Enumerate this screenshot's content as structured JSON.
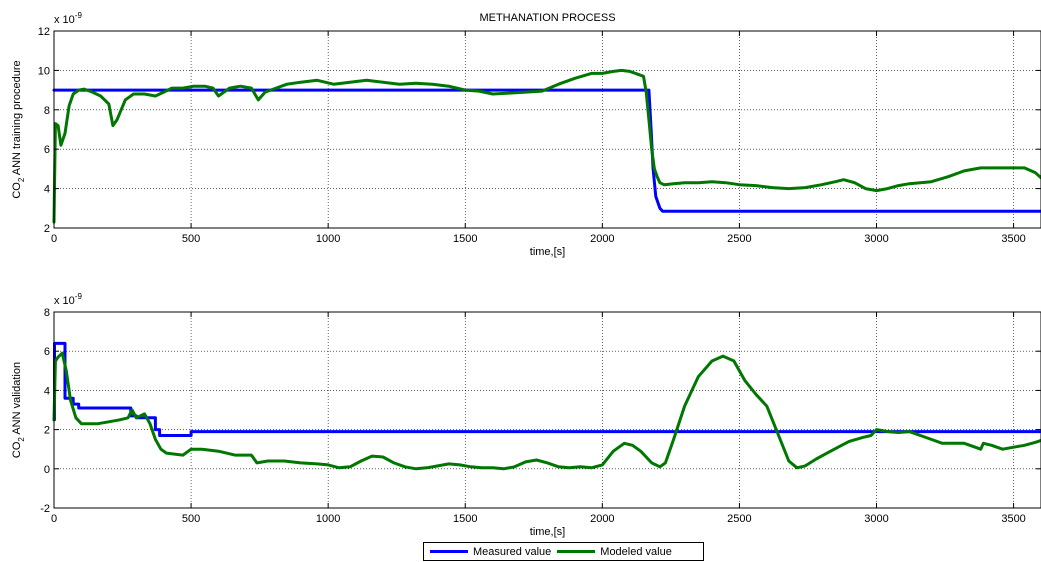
{
  "chart_data": [
    {
      "type": "line",
      "title": "METHANATION PROCESS",
      "xlabel": "time,[s]",
      "ylabel": "CO2 ANN training procedure",
      "ylabel_main": "CO",
      "ylabel_sub": "2",
      "ylabel_rest": " ANN training procedure",
      "exponent_label": "x 10",
      "exponent_power": "-9",
      "xlim": [
        0,
        3600
      ],
      "ylim": [
        2,
        12
      ],
      "grid": true,
      "xticks": [
        0,
        500,
        1000,
        1500,
        2000,
        2500,
        3000,
        3500
      ],
      "yticks": [
        2,
        4,
        6,
        8,
        10,
        12
      ],
      "series": [
        {
          "name": "Measured value",
          "color": "#0000ff",
          "x": [
            0,
            2,
            2,
            2170,
            2178,
            2185,
            2195,
            2210,
            2220,
            3600
          ],
          "y": [
            9.0,
            9.0,
            9.0,
            9.0,
            7.0,
            5.0,
            3.6,
            3.0,
            2.85,
            2.85
          ]
        },
        {
          "name": "Modeled value",
          "color": "#007700",
          "x": [
            0,
            5,
            15,
            25,
            40,
            55,
            70,
            90,
            110,
            140,
            170,
            200,
            215,
            230,
            260,
            290,
            330,
            370,
            400,
            430,
            470,
            510,
            550,
            580,
            600,
            640,
            680,
            720,
            745,
            770,
            810,
            850,
            900,
            960,
            1020,
            1080,
            1140,
            1200,
            1260,
            1320,
            1380,
            1440,
            1500,
            1550,
            1600,
            1660,
            1720,
            1780,
            1840,
            1900,
            1960,
            2000,
            2040,
            2070,
            2100,
            2130,
            2150,
            2160,
            2170,
            2180,
            2190,
            2200,
            2210,
            2225,
            2260,
            2300,
            2350,
            2400,
            2450,
            2500,
            2560,
            2620,
            2680,
            2740,
            2800,
            2850,
            2880,
            2920,
            2960,
            3000,
            3040,
            3080,
            3120,
            3160,
            3200,
            3260,
            3320,
            3380,
            3440,
            3500,
            3540,
            3580,
            3600
          ],
          "y": [
            2.3,
            7.3,
            7.2,
            6.2,
            6.8,
            8.2,
            8.8,
            9.0,
            9.05,
            8.9,
            8.7,
            8.3,
            7.2,
            7.5,
            8.5,
            8.8,
            8.8,
            8.7,
            8.9,
            9.1,
            9.1,
            9.2,
            9.2,
            9.1,
            8.7,
            9.1,
            9.2,
            9.1,
            8.5,
            8.9,
            9.1,
            9.3,
            9.4,
            9.5,
            9.3,
            9.4,
            9.5,
            9.4,
            9.3,
            9.35,
            9.3,
            9.2,
            9.0,
            8.95,
            8.8,
            8.85,
            8.9,
            8.95,
            9.3,
            9.6,
            9.85,
            9.85,
            9.95,
            10.0,
            9.95,
            9.8,
            9.7,
            8.9,
            7.5,
            6.0,
            5.0,
            4.6,
            4.3,
            4.2,
            4.25,
            4.3,
            4.3,
            4.35,
            4.3,
            4.2,
            4.15,
            4.05,
            4.0,
            4.05,
            4.2,
            4.35,
            4.45,
            4.3,
            4.0,
            3.9,
            4.0,
            4.15,
            4.25,
            4.3,
            4.35,
            4.6,
            4.9,
            5.05,
            5.05,
            5.05,
            5.05,
            4.8,
            4.55
          ]
        }
      ]
    },
    {
      "type": "line",
      "title": "",
      "xlabel": "time,[s]",
      "ylabel": "CO2 ANN validation",
      "ylabel_main": "CO",
      "ylabel_sub": "2",
      "ylabel_rest": " ANN validation",
      "exponent_label": "x 10",
      "exponent_power": "-9",
      "xlim": [
        0,
        3600
      ],
      "ylim": [
        -2,
        8
      ],
      "grid": true,
      "xticks": [
        0,
        500,
        1000,
        1500,
        2000,
        2500,
        3000,
        3500
      ],
      "yticks": [
        -2,
        0,
        2,
        4,
        6,
        8
      ],
      "series": [
        {
          "name": "Measured value",
          "color": "#0000ff",
          "x": [
            0,
            2,
            2,
            40,
            40,
            70,
            70,
            90,
            90,
            280,
            280,
            300,
            300,
            370,
            370,
            385,
            385,
            500,
            500,
            3600
          ],
          "y": [
            2.5,
            2.5,
            6.4,
            6.4,
            3.6,
            3.6,
            3.3,
            3.3,
            3.1,
            3.1,
            2.7,
            2.7,
            2.6,
            2.6,
            2.0,
            2.0,
            1.7,
            1.7,
            1.9,
            1.9
          ]
        },
        {
          "name": "Modeled value",
          "color": "#007700",
          "x": [
            0,
            5,
            15,
            30,
            45,
            60,
            80,
            100,
            130,
            160,
            200,
            240,
            270,
            285,
            300,
            330,
            350,
            370,
            390,
            410,
            440,
            470,
            500,
            540,
            600,
            660,
            720,
            740,
            780,
            840,
            900,
            960,
            1000,
            1040,
            1080,
            1120,
            1160,
            1200,
            1240,
            1280,
            1320,
            1360,
            1400,
            1440,
            1480,
            1520,
            1560,
            1600,
            1640,
            1680,
            1720,
            1760,
            1800,
            1840,
            1880,
            1920,
            1960,
            2000,
            2040,
            2080,
            2110,
            2140,
            2180,
            2210,
            2230,
            2260,
            2300,
            2350,
            2400,
            2440,
            2480,
            2520,
            2560,
            2600,
            2640,
            2680,
            2710,
            2740,
            2780,
            2820,
            2860,
            2900,
            2950,
            2980,
            3000,
            3040,
            3080,
            3120,
            3160,
            3200,
            3240,
            3280,
            3320,
            3360,
            3380,
            3390,
            3420,
            3460,
            3500,
            3540,
            3580,
            3600
          ],
          "y": [
            2.5,
            5.5,
            5.7,
            5.9,
            5.0,
            3.5,
            2.6,
            2.3,
            2.3,
            2.3,
            2.4,
            2.5,
            2.6,
            3.0,
            2.6,
            2.8,
            2.3,
            1.5,
            1.0,
            0.8,
            0.75,
            0.7,
            1.0,
            1.0,
            0.9,
            0.7,
            0.7,
            0.3,
            0.4,
            0.4,
            0.3,
            0.25,
            0.2,
            0.05,
            0.1,
            0.4,
            0.65,
            0.6,
            0.3,
            0.1,
            0.0,
            0.05,
            0.15,
            0.25,
            0.2,
            0.1,
            0.05,
            0.05,
            0.0,
            0.1,
            0.35,
            0.45,
            0.3,
            0.1,
            0.05,
            0.1,
            0.05,
            0.2,
            0.9,
            1.3,
            1.2,
            0.9,
            0.3,
            0.1,
            0.3,
            1.5,
            3.2,
            4.7,
            5.5,
            5.75,
            5.5,
            4.5,
            3.8,
            3.2,
            1.8,
            0.4,
            0.05,
            0.15,
            0.5,
            0.8,
            1.1,
            1.4,
            1.6,
            1.7,
            2.0,
            1.9,
            1.85,
            1.9,
            1.7,
            1.5,
            1.3,
            1.3,
            1.3,
            1.1,
            1.0,
            1.3,
            1.2,
            1.0,
            1.1,
            1.2,
            1.35,
            1.45
          ]
        }
      ]
    }
  ],
  "legend": {
    "entries": [
      {
        "label": "Measured value",
        "color": "#0000ff"
      },
      {
        "label": "Modeled value",
        "color": "#007700"
      }
    ]
  }
}
